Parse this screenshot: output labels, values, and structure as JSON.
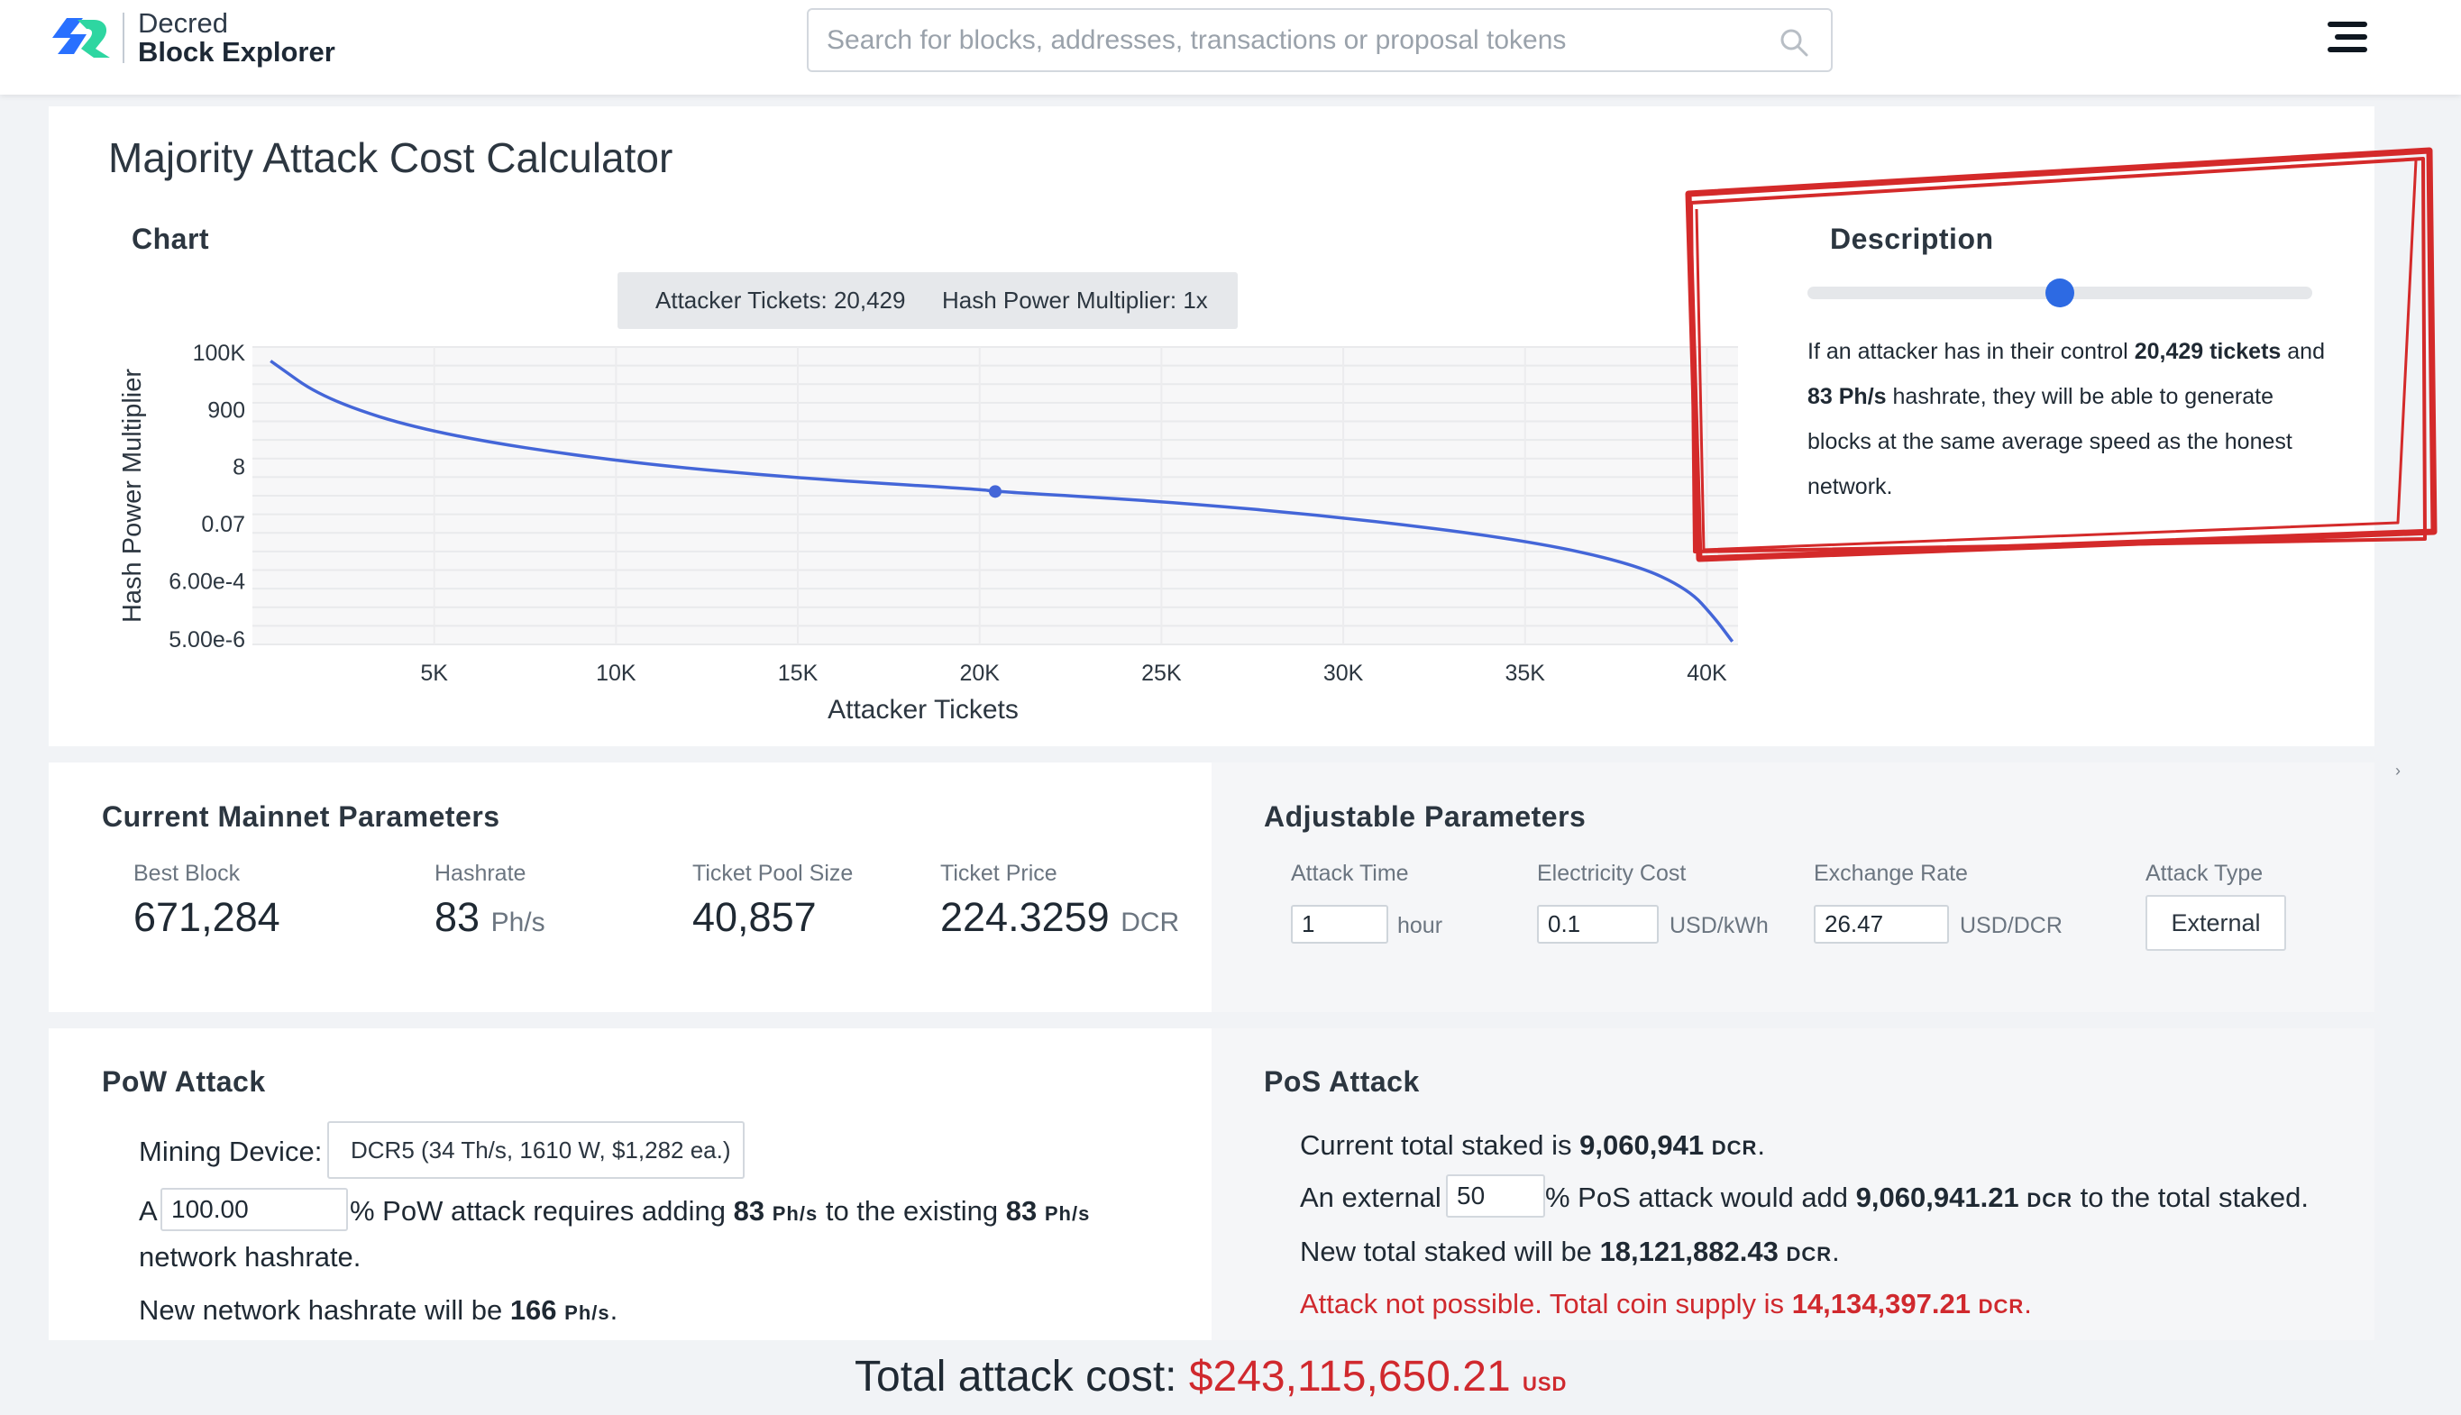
{
  "header": {
    "brand_line1": "Decred",
    "brand_line2": "Block Explorer",
    "search_placeholder": "Search for blocks, addresses, transactions or proposal tokens"
  },
  "page_title": "Majority Attack Cost Calculator",
  "chart_section_title": "Chart",
  "chart_legend": {
    "tickets": "Attacker Tickets: 20,429",
    "multiplier": "Hash Power Multiplier: 1x"
  },
  "chart_data": {
    "type": "line",
    "xlabel": "Attacker Tickets",
    "ylabel": "Hash Power Multiplier",
    "x_ticks": [
      "5K",
      "10K",
      "15K",
      "20K",
      "25K",
      "30K",
      "35K",
      "40K"
    ],
    "x_tick_values": [
      5000,
      10000,
      15000,
      20000,
      25000,
      30000,
      35000,
      40000
    ],
    "y_ticks": [
      "100K",
      "900",
      "8",
      "0.07",
      "6.00e-4",
      "5.00e-6"
    ],
    "y_tick_values": [
      100000,
      900,
      8,
      0.07,
      0.0006,
      5e-06
    ],
    "y_scale": "log",
    "xlim": [
      0,
      40857
    ],
    "series": [
      {
        "color": "#4466d8",
        "x": [
          500,
          2000,
          5000,
          10000,
          15000,
          20000,
          20429,
          25000,
          30000,
          35000,
          38000,
          39500,
          40200,
          40700
        ],
        "y": [
          50000,
          2000,
          120,
          12,
          3,
          1.2,
          1,
          0.45,
          0.12,
          0.018,
          0.0025,
          0.0003,
          3e-05,
          4e-06
        ]
      }
    ],
    "highlight_point": {
      "x": 20429,
      "y": 1
    },
    "grid": true
  },
  "description": {
    "title": "Description",
    "text_1": "If an attacker has in their control ",
    "tickets_bold": "20,429 tickets",
    "text_2": " and ",
    "hashrate_bold": "83 Ph/s",
    "text_3": " hashrate, they will be able to generate blocks at the same average speed as the honest network.",
    "slider_fraction": 0.5
  },
  "mainnet": {
    "title": "Current Mainnet Parameters",
    "best_block_label": "Best Block",
    "best_block": "671,284",
    "hashrate_label": "Hashrate",
    "hashrate": "83",
    "hashrate_unit": "Ph/s",
    "pool_label": "Ticket Pool Size",
    "pool": "40,857",
    "price_label": "Ticket Price",
    "price": "224.3259",
    "price_unit": "DCR"
  },
  "adjustable": {
    "title": "Adjustable Parameters",
    "time_label": "Attack Time",
    "time_value": "1",
    "time_unit": "hour",
    "elec_label": "Electricity Cost",
    "elec_value": "0.1",
    "elec_unit": "USD/kWh",
    "rate_label": "Exchange Rate",
    "rate_value": "26.47",
    "rate_unit": "USD/DCR",
    "type_label": "Attack Type",
    "type_value": "External"
  },
  "pow": {
    "title": "PoW Attack",
    "device_label": "Mining Device:",
    "device_value": "DCR5 (34 Th/s, 1610 W, $1,282 ea.)",
    "line_a": "A",
    "percent_value": "100.00",
    "line_mid": "% PoW attack requires adding",
    "add_value": "83",
    "unit": "Ph/s",
    "line_mid2": "to the existing",
    "existing_value": "83",
    "line_end": "network hashrate.",
    "new_prefix": "New network hashrate will be",
    "new_value": "166",
    "new_suffix": "."
  },
  "pos": {
    "title": "PoS Attack",
    "staked_prefix": "Current total staked is",
    "staked_value": "9,060,941",
    "unit": "DCR",
    "external_prefix": "An external",
    "external_value": "50",
    "external_mid": "% PoS attack would add",
    "add_value": "9,060,941.21",
    "external_suffix": "to the total staked.",
    "new_prefix": "New total staked will be",
    "new_value": "18,121,882.43",
    "warning_prefix": "Attack not possible. Total coin supply is",
    "warning_value": "14,134,397.21",
    "period": "."
  },
  "total": {
    "label": "Total attack cost:",
    "amount": "$243,115,650.21",
    "currency": "USD"
  },
  "colors": {
    "accent_blue": "#2d6ae3",
    "line_blue": "#4466d8",
    "warning_red": "#d0292e",
    "annotation_red": "#d42a2a"
  }
}
